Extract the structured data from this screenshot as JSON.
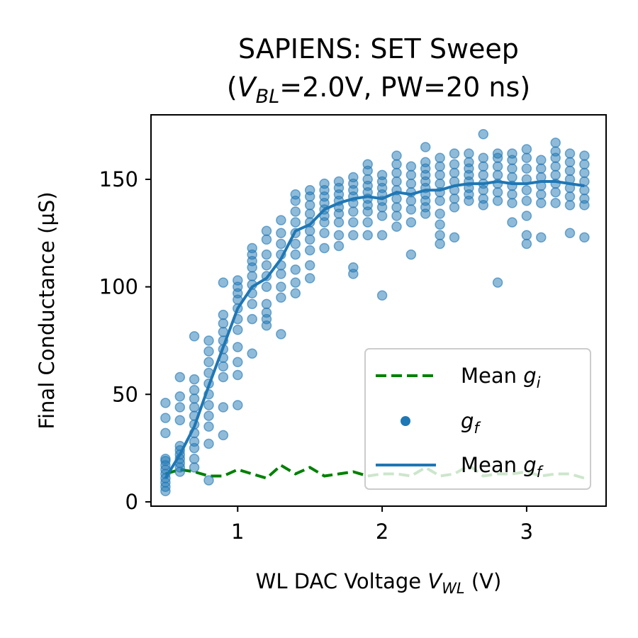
{
  "chart_data": {
    "type": "scatter",
    "title_line1": "SAPIENS: SET Sweep",
    "title_line2": {
      "pre": "(",
      "var": "V",
      "sub": "BL",
      "post": "=2.0V, PW=20 ns)"
    },
    "xlabel": {
      "pre": "WL DAC Voltage ",
      "var": "V",
      "sub": "WL",
      "post": " (V)"
    },
    "ylabel": "Final Conductance (µS)",
    "xlim": [
      0.4,
      3.55
    ],
    "ylim": [
      -2,
      180
    ],
    "xticks": [
      1,
      2,
      3
    ],
    "xtick_labels": [
      "1",
      "2",
      "3"
    ],
    "yticks": [
      0,
      50,
      100,
      150
    ],
    "ytick_labels": [
      "0",
      "50",
      "100",
      "150"
    ],
    "grid": false,
    "legend_position": "lower right",
    "legend": [
      {
        "key": "mean_gi",
        "text": "Mean ",
        "var": "g",
        "sub": "i",
        "style": "dashed-line",
        "color": "#008000"
      },
      {
        "key": "gf",
        "text": "",
        "var": "g",
        "sub": "f",
        "style": "marker",
        "color": "#1f77b4"
      },
      {
        "key": "mean_gf",
        "text": "Mean ",
        "var": "g",
        "sub": "f",
        "style": "solid-line",
        "color": "#1f77b4"
      }
    ],
    "colors": {
      "scatter": "#1f77b4",
      "mean_gf": "#1f77b4",
      "mean_gi": "#008000"
    },
    "series": [
      {
        "key": "mean_gi",
        "x": [
          0.5,
          0.6,
          0.7,
          0.8,
          0.9,
          1.0,
          1.1,
          1.2,
          1.3,
          1.4,
          1.5,
          1.6,
          1.7,
          1.8,
          1.9,
          2.0,
          2.1,
          2.2,
          2.3,
          2.4,
          2.5,
          2.6,
          2.7,
          2.8,
          2.9,
          3.0,
          3.1,
          3.2,
          3.3,
          3.4
        ],
        "y": [
          13,
          15,
          14,
          12,
          12,
          15,
          13,
          11,
          17,
          13,
          16,
          12,
          13,
          14,
          12,
          13,
          13,
          12,
          16,
          12,
          13,
          17,
          12,
          13,
          13,
          14,
          12,
          13,
          13,
          11
        ]
      },
      {
        "key": "mean_gf",
        "x": [
          0.5,
          0.6,
          0.7,
          0.8,
          0.9,
          1.0,
          1.1,
          1.2,
          1.3,
          1.4,
          1.5,
          1.6,
          1.7,
          1.8,
          1.9,
          2.0,
          2.1,
          2.2,
          2.3,
          2.4,
          2.5,
          2.6,
          2.7,
          2.8,
          2.9,
          3.0,
          3.1,
          3.2,
          3.3,
          3.4
        ],
        "y": [
          11,
          22,
          35,
          54,
          72,
          90,
          100,
          104,
          113,
          126,
          129,
          136,
          139,
          141,
          142,
          141,
          144,
          143,
          145,
          145,
          147,
          148,
          148,
          149,
          148,
          148,
          149,
          149,
          148,
          147
        ]
      }
    ],
    "scatter_groups": [
      {
        "x": 0.5,
        "y": [
          5,
          7,
          9,
          11,
          13,
          15,
          17,
          19,
          20,
          32,
          39,
          46
        ]
      },
      {
        "x": 0.6,
        "y": [
          14,
          16,
          18,
          20,
          22,
          24,
          26,
          38,
          44,
          49,
          58
        ]
      },
      {
        "x": 0.7,
        "y": [
          16,
          20,
          25,
          28,
          32,
          36,
          40,
          44,
          48,
          52,
          57,
          77
        ]
      },
      {
        "x": 0.8,
        "y": [
          10,
          27,
          35,
          40,
          45,
          50,
          55,
          60,
          65,
          70,
          75
        ]
      },
      {
        "x": 0.9,
        "y": [
          31,
          44,
          58,
          63,
          67,
          71,
          75,
          79,
          83,
          87,
          102
        ]
      },
      {
        "x": 1.0,
        "y": [
          45,
          59,
          65,
          72,
          80,
          85,
          90,
          94,
          97,
          100,
          103
        ]
      },
      {
        "x": 1.1,
        "y": [
          69,
          85,
          92,
          97,
          101,
          105,
          109,
          112,
          115,
          118
        ]
      },
      {
        "x": 1.2,
        "y": [
          82,
          85,
          88,
          92,
          100,
          105,
          110,
          115,
          122,
          126
        ]
      },
      {
        "x": 1.3,
        "y": [
          78,
          95,
          100,
          106,
          110,
          115,
          120,
          125,
          131
        ]
      },
      {
        "x": 1.4,
        "y": [
          97,
          102,
          108,
          115,
          120,
          125,
          130,
          135,
          140,
          143
        ]
      },
      {
        "x": 1.5,
        "y": [
          104,
          110,
          117,
          122,
          126,
          130,
          134,
          138,
          142,
          145
        ]
      },
      {
        "x": 1.6,
        "y": [
          118,
          125,
          130,
          133,
          136,
          139,
          142,
          145,
          148
        ]
      },
      {
        "x": 1.7,
        "y": [
          119,
          124,
          130,
          134,
          137,
          140,
          143,
          146,
          149
        ]
      },
      {
        "x": 1.8,
        "y": [
          106,
          109,
          124,
          130,
          135,
          139,
          142,
          145,
          148,
          151
        ]
      },
      {
        "x": 1.9,
        "y": [
          124,
          130,
          135,
          138,
          141,
          144,
          147,
          150,
          154,
          157
        ]
      },
      {
        "x": 2.0,
        "y": [
          96,
          124,
          133,
          137,
          140,
          143,
          146,
          149,
          152
        ]
      },
      {
        "x": 2.1,
        "y": [
          128,
          133,
          137,
          141,
          145,
          149,
          153,
          157,
          161
        ]
      },
      {
        "x": 2.2,
        "y": [
          115,
          130,
          136,
          140,
          144,
          148,
          152,
          156
        ]
      },
      {
        "x": 2.3,
        "y": [
          134,
          137,
          140,
          143,
          146,
          149,
          152,
          155,
          158,
          165
        ]
      },
      {
        "x": 2.4,
        "y": [
          120,
          124,
          129,
          134,
          140,
          144,
          148,
          152,
          156,
          160
        ]
      },
      {
        "x": 2.5,
        "y": [
          123,
          137,
          141,
          145,
          149,
          153,
          157,
          162
        ]
      },
      {
        "x": 2.6,
        "y": [
          140,
          143,
          146,
          149,
          152,
          155,
          158,
          162
        ]
      },
      {
        "x": 2.7,
        "y": [
          138,
          141,
          145,
          148,
          152,
          156,
          160,
          171
        ]
      },
      {
        "x": 2.8,
        "y": [
          102,
          140,
          144,
          148,
          152,
          156,
          160,
          162
        ]
      },
      {
        "x": 2.9,
        "y": [
          130,
          139,
          143,
          147,
          151,
          155,
          159,
          162
        ]
      },
      {
        "x": 3.0,
        "y": [
          120,
          124,
          133,
          140,
          145,
          150,
          155,
          160,
          164
        ]
      },
      {
        "x": 3.1,
        "y": [
          123,
          139,
          143,
          147,
          151,
          155,
          159
        ]
      },
      {
        "x": 3.2,
        "y": [
          139,
          144,
          148,
          152,
          156,
          160,
          163,
          167
        ]
      },
      {
        "x": 3.3,
        "y": [
          125,
          138,
          142,
          146,
          150,
          154,
          158,
          162
        ]
      },
      {
        "x": 3.4,
        "y": [
          123,
          138,
          141,
          145,
          149,
          153,
          157,
          161
        ]
      }
    ]
  }
}
